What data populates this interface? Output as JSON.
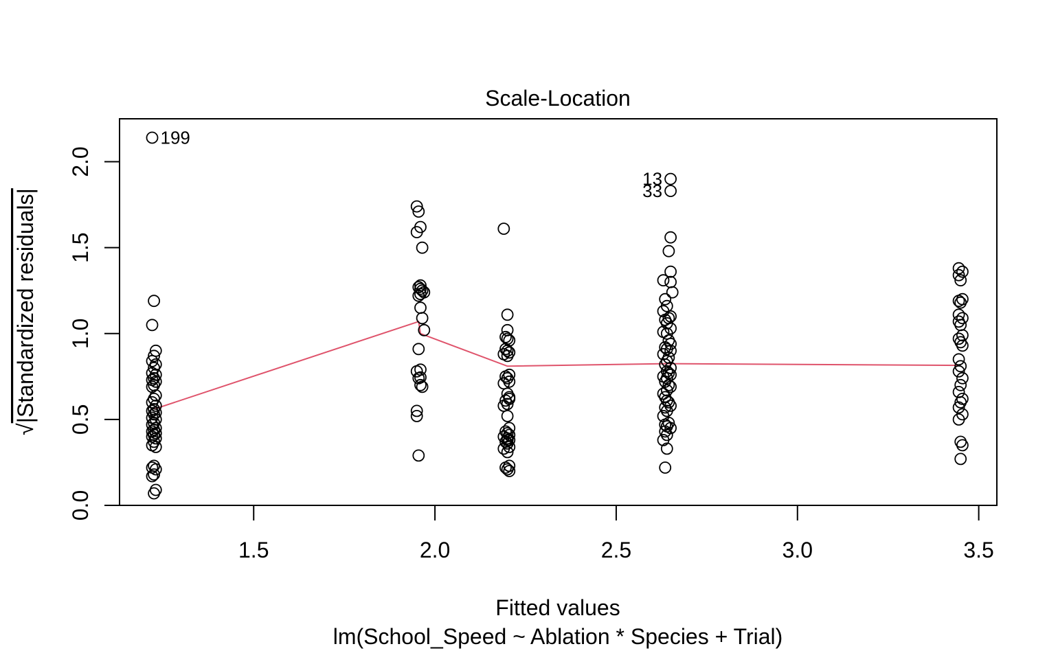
{
  "chart_data": {
    "type": "scatter",
    "title": "Scale-Location",
    "xlabel": "Fitted values",
    "subtitle": "lm(School_Speed ~ Ablation * Species + Trial)",
    "ylabel_prefix": "√",
    "ylabel": "|Standardized residuals|",
    "xlim": [
      1.13,
      3.55
    ],
    "ylim": [
      0.0,
      2.25
    ],
    "xticks": [
      1.5,
      2.0,
      2.5,
      3.0,
      3.5
    ],
    "xtick_labels": [
      "1.5",
      "2.0",
      "2.5",
      "3.0",
      "3.5"
    ],
    "yticks": [
      0.0,
      0.5,
      1.0,
      1.5,
      2.0
    ],
    "ytick_labels": [
      "0.0",
      "0.5",
      "1.0",
      "1.5",
      "2.0"
    ],
    "grid": false,
    "colors": {
      "points": "#000000",
      "smooth_line": "#DF536B"
    },
    "series": [
      {
        "x": [
          1.22,
          1.225,
          1.22,
          1.23,
          1.225,
          1.22,
          1.23,
          1.225,
          1.22,
          1.23,
          1.225,
          1.22,
          1.23,
          1.225,
          1.22,
          1.23,
          1.225,
          1.22,
          1.23,
          1.225,
          1.22,
          1.23,
          1.225,
          1.22,
          1.23,
          1.225,
          1.22,
          1.23,
          1.225,
          1.22,
          1.23,
          1.225,
          1.22,
          1.23,
          1.225,
          1.22,
          1.23,
          1.225,
          1.22,
          1.23,
          1.225,
          1.22,
          1.23,
          1.225,
          1.95,
          1.955,
          1.96,
          1.95,
          1.965,
          1.96,
          1.955,
          1.96,
          1.965,
          1.97,
          1.96,
          1.955,
          1.96,
          1.965,
          1.97,
          1.955,
          1.96,
          1.95,
          1.955,
          1.96,
          1.965,
          1.95,
          1.95,
          1.955,
          1.96,
          2.19,
          2.2,
          2.2,
          2.195,
          2.2,
          2.205,
          2.195,
          2.2,
          2.205,
          2.19,
          2.2,
          2.205,
          2.195,
          2.2,
          2.205,
          2.19,
          2.2,
          2.205,
          2.195,
          2.2,
          2.19,
          2.2,
          2.205,
          2.195,
          2.2,
          2.205,
          2.19,
          2.2,
          2.205,
          2.195,
          2.2,
          2.205,
          2.19,
          2.2,
          2.205,
          2.195,
          2.2,
          2.205,
          2.2,
          2.205,
          2.65,
          2.65,
          2.65,
          2.645,
          2.65,
          2.63,
          2.65,
          2.655,
          2.635,
          2.64,
          2.63,
          2.65,
          2.645,
          2.635,
          2.64,
          2.65,
          2.63,
          2.64,
          2.645,
          2.65,
          2.635,
          2.64,
          2.65,
          2.63,
          2.645,
          2.64,
          2.635,
          2.65,
          2.64,
          2.645,
          2.65,
          2.63,
          2.64,
          2.635,
          2.645,
          2.65,
          2.64,
          2.63,
          2.635,
          2.64,
          2.645,
          2.65,
          2.635,
          2.64,
          2.63,
          2.645,
          2.635,
          2.64,
          2.65,
          2.635,
          2.64,
          2.63,
          2.64,
          2.635,
          3.445,
          3.455,
          3.445,
          3.45,
          3.455,
          3.445,
          3.45,
          3.445,
          3.455,
          3.445,
          3.45,
          3.455,
          3.445,
          3.45,
          3.455,
          3.445,
          3.45,
          3.445,
          3.455,
          3.45,
          3.445,
          3.455,
          3.45,
          3.445,
          3.455,
          3.445,
          3.45,
          3.455,
          3.45
        ],
        "y": [
          2.14,
          1.19,
          1.05,
          0.9,
          0.87,
          0.84,
          0.82,
          0.8,
          0.77,
          0.76,
          0.74,
          0.73,
          0.72,
          0.7,
          0.69,
          0.64,
          0.62,
          0.6,
          0.58,
          0.56,
          0.55,
          0.54,
          0.53,
          0.51,
          0.5,
          0.48,
          0.47,
          0.45,
          0.44,
          0.43,
          0.42,
          0.41,
          0.4,
          0.39,
          0.37,
          0.35,
          0.34,
          0.23,
          0.22,
          0.21,
          0.18,
          0.17,
          0.09,
          0.07,
          1.74,
          1.71,
          1.62,
          1.59,
          1.5,
          1.28,
          1.27,
          1.26,
          1.25,
          1.24,
          1.23,
          1.22,
          1.15,
          1.09,
          1.02,
          0.91,
          0.79,
          0.78,
          0.74,
          0.7,
          0.69,
          0.55,
          0.52,
          0.29,
          0.745,
          1.61,
          1.11,
          1.02,
          0.98,
          0.97,
          0.96,
          0.91,
          0.9,
          0.89,
          0.88,
          0.87,
          0.76,
          0.75,
          0.74,
          0.72,
          0.71,
          0.65,
          0.63,
          0.61,
          0.59,
          0.58,
          0.52,
          0.45,
          0.43,
          0.42,
          0.41,
          0.4,
          0.39,
          0.38,
          0.37,
          0.36,
          0.34,
          0.33,
          0.31,
          0.23,
          0.22,
          0.21,
          0.2,
          0.38,
          0.62,
          1.9,
          1.83,
          1.56,
          1.48,
          1.36,
          1.31,
          1.3,
          1.24,
          1.2,
          1.16,
          1.13,
          1.1,
          1.09,
          1.08,
          1.06,
          1.03,
          1.01,
          1.0,
          0.96,
          0.94,
          0.92,
          0.91,
          0.9,
          0.88,
          0.86,
          0.84,
          0.82,
          0.8,
          0.78,
          0.77,
          0.76,
          0.75,
          0.74,
          0.72,
          0.7,
          0.69,
          0.67,
          0.65,
          0.63,
          0.61,
          0.6,
          0.58,
          0.57,
          0.55,
          0.52,
          0.48,
          0.47,
          0.46,
          0.45,
          0.43,
          0.41,
          0.38,
          0.33,
          0.22,
          1.38,
          1.36,
          1.34,
          1.31,
          1.2,
          1.19,
          1.18,
          1.11,
          1.09,
          1.07,
          1.05,
          0.99,
          0.97,
          0.95,
          0.93,
          0.85,
          0.81,
          0.78,
          0.74,
          0.7,
          0.66,
          0.62,
          0.6,
          0.57,
          0.53,
          0.5,
          0.37,
          0.35,
          0.27
        ]
      }
    ],
    "point_labels": [
      {
        "text": "199",
        "x": 1.22,
        "y": 2.14,
        "side": "right"
      },
      {
        "text": "13",
        "x": 2.65,
        "y": 1.9,
        "side": "left"
      },
      {
        "text": "33",
        "x": 2.65,
        "y": 1.83,
        "side": "left"
      }
    ],
    "smooth_line": {
      "x": [
        1.225,
        1.955,
        1.96,
        2.2,
        2.64,
        3.45
      ],
      "y": [
        0.56,
        1.07,
        1.0,
        0.81,
        0.825,
        0.815
      ]
    }
  }
}
